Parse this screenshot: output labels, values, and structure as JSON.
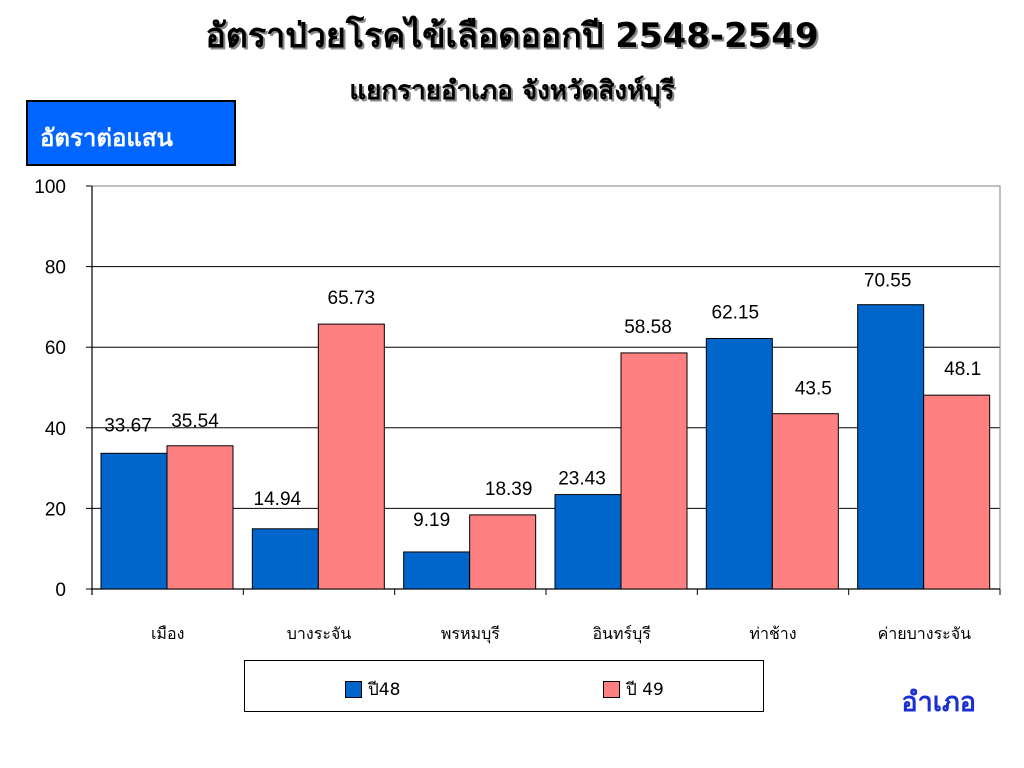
{
  "title": {
    "prefix": "อัตราป่วยโรคไข้เลือดออกปี ",
    "years": "2548-2549",
    "subtitle": "แยกรายอำเภอ  จังหวัดสิงห์บุรี"
  },
  "unit_label": "อัตราต่อแสน",
  "axis_caption": "อำเภอ",
  "chart_data": {
    "type": "bar",
    "categories": [
      "เมือง",
      "บางระจัน",
      "พรหมบุรี",
      "อินทร์บุรี",
      "ท่าช้าง",
      "ค่ายบางระจัน"
    ],
    "series": [
      {
        "name": "ปี48",
        "color": "#0066cc",
        "values": [
          33.67,
          14.94,
          9.19,
          23.43,
          62.15,
          70.55
        ]
      },
      {
        "name": "ปี 49",
        "color": "#ff8080",
        "values": [
          35.54,
          65.73,
          18.39,
          58.58,
          43.5,
          48.1
        ]
      }
    ],
    "data_labels": [
      [
        "33.67",
        "14.94",
        "9.19",
        "23.43",
        "62.15",
        "70.55"
      ],
      [
        "35.54",
        "65.73",
        "18.39",
        "58.58",
        "43.5",
        "48.1"
      ]
    ],
    "ylim": [
      0,
      100
    ],
    "yticks": [
      "0",
      "20",
      "40",
      "60",
      "80",
      "100"
    ],
    "ytick_values": [
      0,
      20,
      40,
      60,
      80,
      100
    ],
    "grid": true,
    "legend_position": "bottom",
    "ylabel": "อัตราต่อแสน",
    "xlabel": "อำเภอ"
  }
}
